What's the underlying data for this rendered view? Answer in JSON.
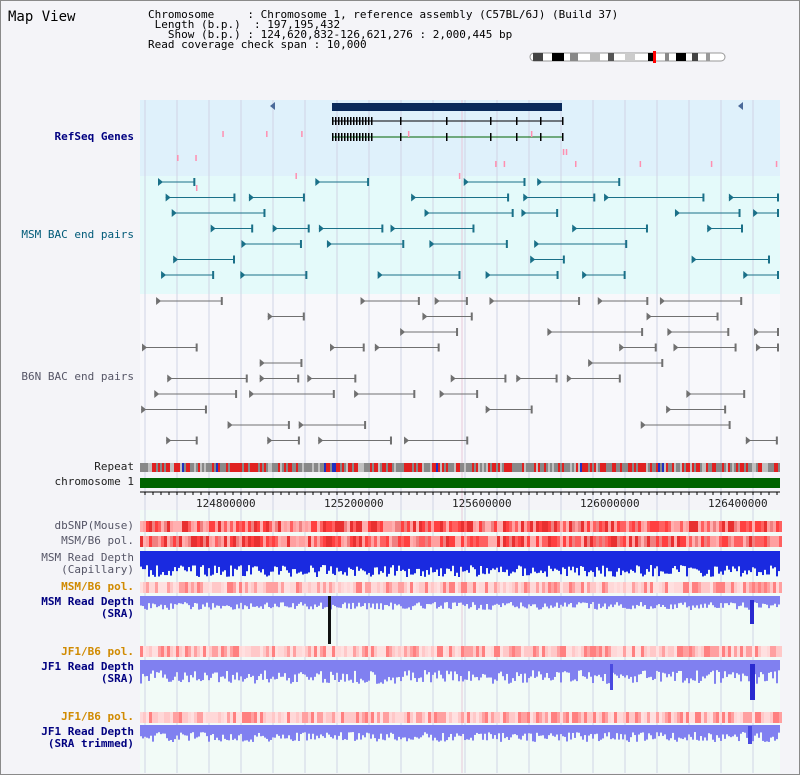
{
  "view_title": "Map View",
  "info": {
    "chromosome_key": "Chromosome",
    "chromosome_value": "Chromosome 1, reference assembly (C57BL/6J) (Build 37)",
    "length_key": "Length (b.p.)",
    "length_value": "197,195,432",
    "show_key": "Show (b.p.)",
    "show_value": "124,620,832-126,621,276 : 2,000,445 bp",
    "span_key": "Read coverage check span",
    "span_value": "10,000"
  },
  "tracks": {
    "refseq": "RefSeq Genes",
    "msm_bac": "MSM BAC end pairs",
    "b6n_bac": "B6N BAC end pairs",
    "repeat": "Repeat",
    "chromosome": "chromosome 1",
    "dbsnp": "dbSNP(Mouse)",
    "msm_b6_pol_1": "MSM/B6 pol.",
    "msm_depth_cap_1": "MSM Read Depth",
    "msm_depth_cap_2": "(Capillary)",
    "msm_b6_pol_2": "MSM/B6 pol.",
    "msm_depth_sra_1": "MSM Read Depth",
    "msm_depth_sra_2": "(SRA)",
    "jf1_b6_pol_1": "JF1/B6 pol.",
    "jf1_depth_sra_1": "JF1 Read Depth",
    "jf1_depth_sra_2": "(SRA)",
    "jf1_b6_pol_2": "JF1/B6 pol.",
    "jf1_depth_trim_1": "JF1 Read Depth",
    "jf1_depth_trim_2": "(SRA trimmed)"
  },
  "axis_ticks": [
    "124800000",
    "125200000",
    "125600000",
    "126000000",
    "126400000"
  ],
  "colors": {
    "refseq_bg": "#dff1fb",
    "msm_bac_bg": "#e4fafa",
    "gene": "#0a2a5a",
    "msm_feature": "#1a7088",
    "b6n_feature": "#707070",
    "chromosome_bar": "#006400",
    "depth_blue": "#1a2ae0",
    "depth_light": "#8080f0"
  }
}
